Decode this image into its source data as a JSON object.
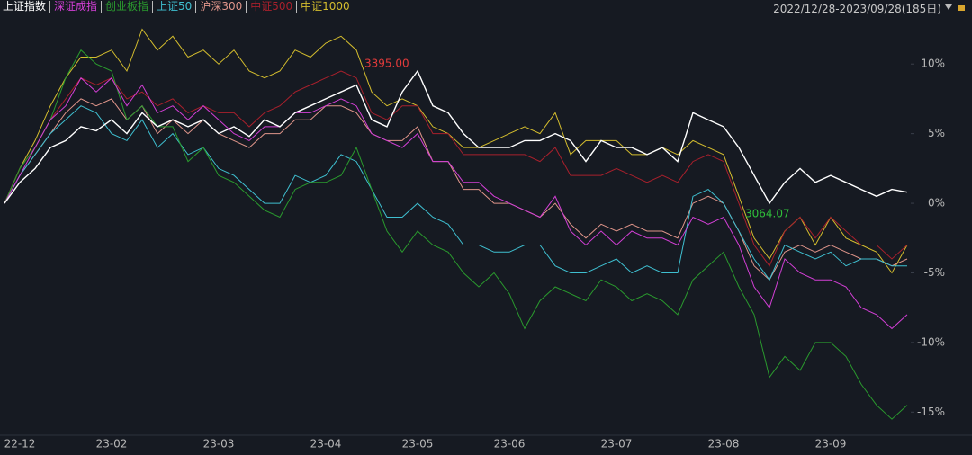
{
  "chart_data": {
    "type": "line",
    "date_range": "2022/12/28-2023/09/28(185日)",
    "annotations": [
      "3395.00",
      "3064.07"
    ],
    "categories": [
      null,
      "22-12",
      null,
      null,
      null,
      null,
      null,
      "23-02",
      null,
      null,
      null,
      null,
      null,
      null,
      "23-03",
      null,
      null,
      null,
      null,
      null,
      null,
      "23-04",
      null,
      null,
      null,
      null,
      null,
      "23-05",
      null,
      null,
      null,
      null,
      null,
      "23-06",
      null,
      null,
      null,
      null,
      null,
      null,
      "23-07",
      null,
      null,
      null,
      null,
      null,
      null,
      "23-08",
      null,
      null,
      null,
      null,
      null,
      null,
      "23-09",
      null,
      null,
      null,
      null,
      null
    ],
    "ylim": [
      -16.4,
      14.6
    ],
    "yticks": [
      {
        "value": 10,
        "label": "10%"
      },
      {
        "value": 5,
        "label": "5%"
      },
      {
        "value": 0,
        "label": "0%"
      },
      {
        "value": -5,
        "label": "-5%"
      },
      {
        "value": -10,
        "label": "-10%"
      },
      {
        "value": -15,
        "label": "-15%"
      }
    ],
    "series": [
      {
        "name": "中证1000",
        "color": "#d4bd2e",
        "values": [
          0,
          2.5,
          4.5,
          7,
          9,
          10.5,
          10.5,
          11,
          9.5,
          12.5,
          11,
          12,
          10.5,
          11,
          10,
          11,
          9.5,
          9,
          9.5,
          11,
          10.5,
          11.5,
          12,
          11,
          8,
          7,
          7.5,
          7,
          5.5,
          5,
          4,
          4,
          4.5,
          5,
          5.5,
          5,
          6.5,
          3.5,
          4.5,
          4.5,
          4.5,
          3.5,
          3.5,
          4,
          3.5,
          4.5,
          4,
          3.5,
          0.5,
          -2.5,
          -4,
          -2,
          -1,
          -3,
          -1,
          -2.5,
          -3,
          -3.5,
          -5,
          -3
        ]
      },
      {
        "name": "中证500",
        "color": "#a8202c",
        "values": [
          0,
          2.5,
          4,
          6,
          7.5,
          9,
          8.5,
          9,
          7.5,
          8,
          7,
          7.5,
          6.5,
          7,
          6.5,
          6.5,
          5.5,
          6.5,
          7,
          8,
          8.5,
          9,
          9.5,
          9,
          6.5,
          6,
          7,
          7,
          5,
          5,
          3.5,
          3.5,
          3.5,
          3.5,
          3.5,
          3,
          4,
          2,
          2,
          2,
          2.5,
          2,
          1.5,
          2,
          1.5,
          3,
          3.5,
          3,
          0,
          -3,
          -4.5,
          -2,
          -1,
          -2.5,
          -1,
          -2,
          -3,
          -3,
          -4,
          -3
        ]
      },
      {
        "name": "沪深300",
        "color": "#e0958a",
        "values": [
          0,
          2,
          3.5,
          5,
          6.5,
          7.5,
          7,
          7.5,
          6,
          7,
          5,
          6,
          5,
          6,
          5,
          4.5,
          4,
          5,
          5,
          6,
          6,
          7,
          7,
          6.5,
          5,
          4.5,
          4.5,
          5.5,
          3,
          3,
          1,
          1,
          0,
          0,
          -0.5,
          -1,
          0,
          -1.5,
          -2.5,
          -1.5,
          -2,
          -1.5,
          -2,
          -2,
          -2.5,
          0,
          0.5,
          0,
          -2,
          -4.5,
          -5.5,
          -3.5,
          -3,
          -3.5,
          -3,
          -3.5,
          -4,
          -4,
          -4.5,
          -4
        ]
      },
      {
        "name": "上证50",
        "color": "#3fbfd0",
        "values": [
          0,
          2,
          3.5,
          5,
          6,
          7,
          6.5,
          5,
          4.5,
          6,
          4,
          5,
          3.5,
          4,
          2.5,
          2,
          1,
          0,
          0,
          2,
          1.5,
          2,
          3.5,
          3,
          1,
          -1,
          -1,
          0,
          -1,
          -1.5,
          -3,
          -3,
          -3.5,
          -3.5,
          -3,
          -3,
          -4.5,
          -5,
          -5,
          -4.5,
          -4,
          -5,
          -4.5,
          -5,
          -5,
          0.5,
          1,
          0,
          -2,
          -4,
          -5.5,
          -3,
          -3.5,
          -4,
          -3.5,
          -4.5,
          -4,
          -4,
          -4.5,
          -4.5
        ]
      },
      {
        "name": "创业板指",
        "color": "#2a9a2e",
        "values": [
          0,
          2.5,
          4,
          6,
          9,
          11,
          10,
          9.5,
          6,
          7,
          5.5,
          5.5,
          3,
          4,
          2,
          1.5,
          0.5,
          -0.5,
          -1,
          1,
          1.5,
          1.5,
          2,
          4,
          1,
          -2,
          -3.5,
          -2,
          -3,
          -3.5,
          -5,
          -6,
          -5,
          -6.5,
          -9,
          -7,
          -6,
          -6.5,
          -7,
          -5.5,
          -6,
          -7,
          -6.5,
          -7,
          -8,
          -5.5,
          -4.5,
          -3.5,
          -6,
          -8,
          -12.5,
          -11,
          -12,
          -10,
          -10,
          -11,
          -13,
          -14.5,
          -15.5,
          -14.5
        ]
      },
      {
        "name": "深证成指",
        "color": "#d33fd6",
        "values": [
          0,
          2,
          4,
          6,
          7,
          9,
          8,
          9,
          7,
          8.5,
          6.5,
          7,
          6,
          7,
          6,
          5,
          4.5,
          5.5,
          5.5,
          6.5,
          6.5,
          7,
          7.5,
          7,
          5,
          4.5,
          4,
          5,
          3,
          3,
          1.5,
          1.5,
          0.5,
          0,
          -0.5,
          -1,
          0.5,
          -2,
          -3,
          -2,
          -3,
          -2,
          -2.5,
          -2.5,
          -3,
          -1,
          -1.5,
          -1,
          -3,
          -6,
          -7.5,
          -4,
          -5,
          -5.5,
          -5.5,
          -6,
          -7.5,
          -8,
          -9,
          -8
        ]
      },
      {
        "name": "上证指数",
        "color": "#ffffff",
        "values": [
          0,
          1.5,
          2.5,
          4,
          4.5,
          5.5,
          5.2,
          6,
          5,
          6.5,
          5.5,
          6,
          5.5,
          6,
          5,
          5.5,
          4.8,
          6,
          5.5,
          6.5,
          7,
          7.5,
          8,
          8.5,
          6,
          5.5,
          8,
          9.5,
          7,
          6.5,
          5,
          4,
          4,
          4,
          4.5,
          4.5,
          5,
          4.5,
          3,
          4.5,
          4,
          4,
          3.5,
          4,
          3,
          6.5,
          6,
          5.5,
          4,
          2,
          0,
          1.5,
          2.5,
          1.5,
          2,
          1.5,
          1,
          0.5,
          1,
          0.8
        ]
      }
    ]
  }
}
